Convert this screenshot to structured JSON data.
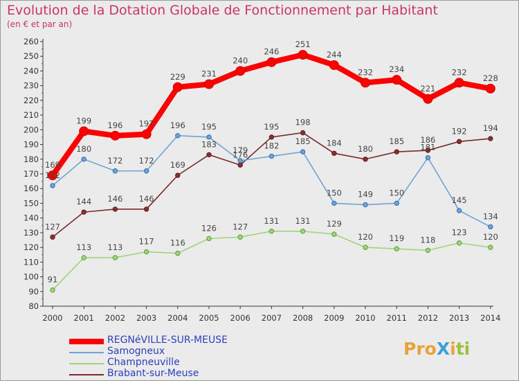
{
  "header": {
    "title": "Evolution de la Dotation Globale de Fonctionnement par Habitant",
    "subtitle": "(en € et par an)"
  },
  "logo": {
    "text": "ProXiti",
    "letters": [
      {
        "ch": "P",
        "color": "#e8a33a"
      },
      {
        "ch": "r",
        "color": "#e8a33a"
      },
      {
        "ch": "o",
        "color": "#e8a33a"
      },
      {
        "ch": "X",
        "color": "#3aa0dd"
      },
      {
        "ch": "i",
        "color": "#e8a33a"
      },
      {
        "ch": "t",
        "color": "#9ac23c"
      },
      {
        "ch": "i",
        "color": "#9ac23c"
      }
    ]
  },
  "chart_data": {
    "type": "line",
    "title": "Evolution de la Dotation Globale de Fonctionnement par Habitant",
    "subtitle": "(en € et par an)",
    "x": [
      "2000",
      "2001",
      "2002",
      "2003",
      "2004",
      "2005",
      "2006",
      "2007",
      "2008",
      "2009",
      "2010",
      "2011",
      "2012",
      "2013",
      "2014"
    ],
    "ylim": [
      80,
      260
    ],
    "ytick_step": 10,
    "grid": false,
    "legend_position": "bottom-left",
    "series": [
      {
        "name": "REGNéVILLE-SUR-MEUSE",
        "color": "#ff0000",
        "marker_fill": "#ff0000",
        "marker_stroke": "#cc0000",
        "thick": true,
        "values": [
          169,
          199,
          196,
          197,
          229,
          231,
          240,
          246,
          251,
          244,
          232,
          234,
          221,
          232,
          228
        ],
        "labels": [
          "169",
          "199",
          "196",
          "197",
          "229",
          "231",
          "240",
          "246",
          "251",
          "244",
          "232",
          "234",
          "221",
          "232",
          "228"
        ]
      },
      {
        "name": "Samogneux",
        "color": "#6fa3d6",
        "marker_fill": "#6fa3d6",
        "marker_stroke": "#2f6fb0",
        "thick": false,
        "values": [
          162,
          180,
          172,
          172,
          196,
          195,
          179,
          182,
          185,
          150,
          149,
          150,
          181,
          145,
          134
        ],
        "labels": [
          "162",
          "180",
          "172",
          "172",
          "196",
          "195",
          "179",
          "182",
          "185",
          "150",
          "149",
          "150",
          "181",
          "145",
          "134"
        ]
      },
      {
        "name": "Champneuville",
        "color": "#9ed47a",
        "marker_fill": "#9ed47a",
        "marker_stroke": "#5e9e3a",
        "thick": false,
        "values": [
          91,
          113,
          113,
          117,
          116,
          126,
          127,
          131,
          131,
          129,
          120,
          119,
          118,
          123,
          120
        ],
        "labels": [
          "91",
          "113",
          "113",
          "117",
          "116",
          "126",
          "127",
          "131",
          "131",
          "129",
          "120",
          "119",
          "118",
          "123",
          "120"
        ]
      },
      {
        "name": "Brabant-sur-Meuse",
        "color": "#7a2a2a",
        "marker_fill": "#8a3030",
        "marker_stroke": "#5a1a1a",
        "thick": false,
        "values": [
          127,
          144,
          146,
          146,
          169,
          183,
          176,
          195,
          198,
          184,
          180,
          185,
          186,
          192,
          194
        ],
        "labels": [
          "127",
          "144",
          "146",
          "146",
          "169",
          "183",
          "176",
          "195",
          "198",
          "184",
          "180",
          "185",
          "186",
          "192",
          "194"
        ]
      }
    ]
  }
}
